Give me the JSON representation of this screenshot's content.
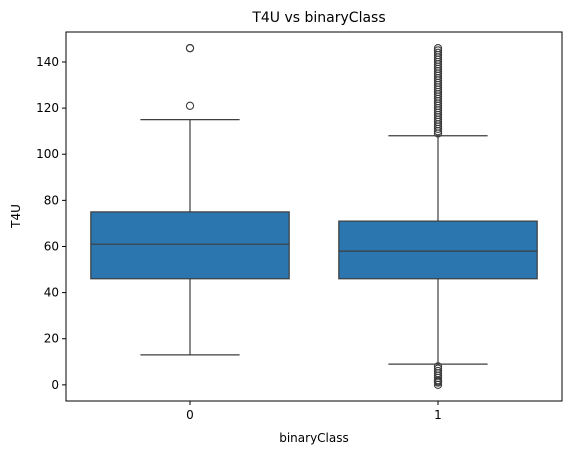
{
  "chart_data": {
    "type": "box",
    "title": "T4U vs binaryClass",
    "xlabel": "binaryClass",
    "ylabel": "T4U",
    "categories": [
      "0",
      "1"
    ],
    "ylim": [
      -7,
      153
    ],
    "yticks": [
      0,
      20,
      40,
      60,
      80,
      100,
      120,
      140
    ],
    "grid": false,
    "legend": "none",
    "box_color": "#2c76b0",
    "edge_color": "#3d3d3d",
    "boxes": [
      {
        "category": "0",
        "whisker_low": 13,
        "q1": 46,
        "median": 61,
        "q3": 75,
        "whisker_high": 115,
        "outliers": [
          121,
          146,
          146
        ]
      },
      {
        "category": "1",
        "whisker_low": 9,
        "q1": 46,
        "median": 58,
        "q3": 71,
        "whisker_high": 108,
        "outliers": [
          0,
          1,
          1.5,
          2,
          3,
          4,
          5,
          6,
          7,
          8,
          109,
          110,
          111,
          112,
          113,
          114,
          115,
          116,
          117,
          118,
          119,
          120,
          121,
          122,
          123,
          124,
          125,
          126,
          127,
          128,
          129,
          130,
          131,
          132,
          133,
          134,
          135,
          136,
          137,
          138,
          139,
          140,
          141,
          142,
          143,
          144,
          145,
          146
        ]
      }
    ]
  }
}
